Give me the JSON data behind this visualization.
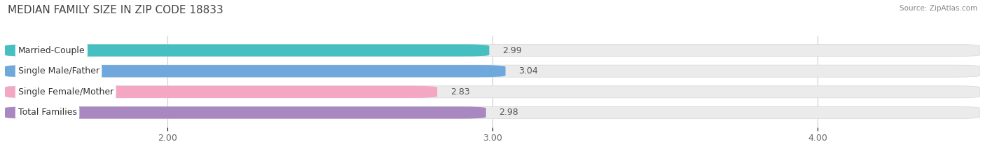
{
  "title": "MEDIAN FAMILY SIZE IN ZIP CODE 18833",
  "source": "Source: ZipAtlas.com",
  "categories": [
    "Married-Couple",
    "Single Male/Father",
    "Single Female/Mother",
    "Total Families"
  ],
  "values": [
    2.99,
    3.04,
    2.83,
    2.98
  ],
  "bar_colors": [
    "#45bfbf",
    "#6fa8dc",
    "#f4a7c3",
    "#a987c0"
  ],
  "xlim": [
    1.5,
    4.5
  ],
  "xticks": [
    2.0,
    3.0,
    4.0
  ],
  "xtick_labels": [
    "2.00",
    "3.00",
    "4.00"
  ],
  "background_color": "#ffffff",
  "bar_bg_color": "#ebebeb",
  "title_fontsize": 11,
  "label_fontsize": 9,
  "value_fontsize": 9,
  "tick_fontsize": 9,
  "bar_height": 0.58,
  "bar_gap": 0.18
}
